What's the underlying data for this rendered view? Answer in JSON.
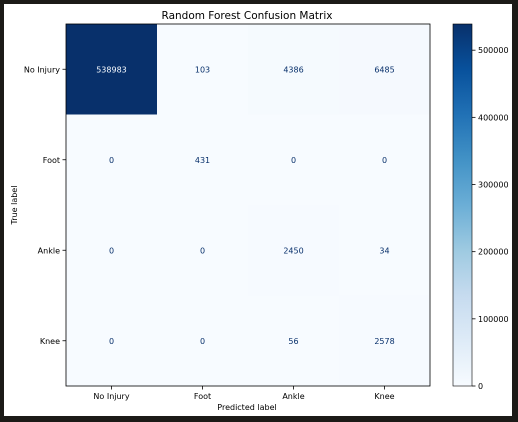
{
  "chart_data": {
    "type": "heatmap",
    "title": "Random Forest Confusion Matrix",
    "xlabel": "Predicted label",
    "ylabel": "True label",
    "x_categories": [
      "No Injury",
      "Foot",
      "Ankle",
      "Knee"
    ],
    "y_categories": [
      "No Injury",
      "Foot",
      "Ankle",
      "Knee"
    ],
    "values": [
      [
        538983,
        103,
        4386,
        6485
      ],
      [
        0,
        431,
        0,
        0
      ],
      [
        0,
        0,
        2450,
        34
      ],
      [
        0,
        0,
        56,
        2578
      ]
    ],
    "colormap": "Blues",
    "vmin": 0,
    "vmax": 538983,
    "colorbar_ticks": [
      {
        "value": 0,
        "label": "0"
      },
      {
        "value": 100000,
        "label": "100000"
      },
      {
        "value": 200000,
        "label": "200000"
      },
      {
        "value": 300000,
        "label": "300000"
      },
      {
        "value": 400000,
        "label": "400000"
      },
      {
        "value": 500000,
        "label": "500000"
      }
    ],
    "grid": false,
    "legend": "colorbar-right"
  }
}
